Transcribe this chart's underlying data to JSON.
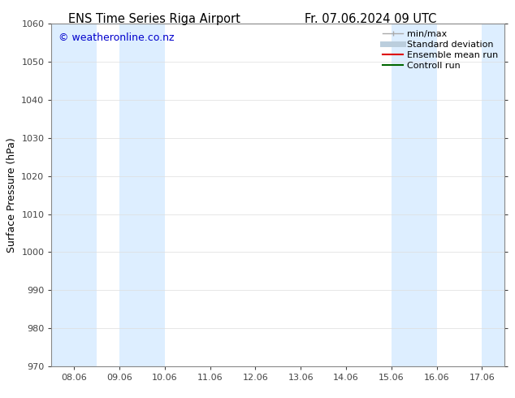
{
  "title_left": "ENS Time Series Riga Airport",
  "title_right": "Fr. 07.06.2024 09 UTC",
  "ylabel": "Surface Pressure (hPa)",
  "ylim": [
    970,
    1060
  ],
  "yticks": [
    970,
    980,
    990,
    1000,
    1010,
    1020,
    1030,
    1040,
    1050,
    1060
  ],
  "x_labels": [
    "08.06",
    "09.06",
    "10.06",
    "11.06",
    "12.06",
    "13.06",
    "14.06",
    "15.06",
    "16.06",
    "17.06"
  ],
  "x_values": [
    0,
    1,
    2,
    3,
    4,
    5,
    6,
    7,
    8,
    9
  ],
  "xlim": [
    -0.5,
    9.5
  ],
  "shaded_bands": [
    {
      "x_start": -0.5,
      "x_end": 0.5,
      "color": "#ddeeff"
    },
    {
      "x_start": 1.0,
      "x_end": 2.0,
      "color": "#ddeeff"
    },
    {
      "x_start": 7.0,
      "x_end": 8.0,
      "color": "#ddeeff"
    },
    {
      "x_start": 9.0,
      "x_end": 9.5,
      "color": "#ddeeff"
    }
  ],
  "watermark": "© weatheronline.co.nz",
  "watermark_color": "#0000cc",
  "bg_color": "#ffffff",
  "plot_bg_color": "#ffffff",
  "spine_color": "#888888",
  "tick_color": "#444444",
  "legend_items": [
    {
      "label": "min/max",
      "color": "#aaaaaa",
      "lw": 1.0,
      "type": "minmax"
    },
    {
      "label": "Standard deviation",
      "color": "#bbcedd",
      "lw": 5,
      "type": "line"
    },
    {
      "label": "Ensemble mean run",
      "color": "#dd0000",
      "lw": 1.5,
      "type": "line"
    },
    {
      "label": "Controll run",
      "color": "#006600",
      "lw": 1.5,
      "type": "line"
    }
  ],
  "font_size_title": 10.5,
  "font_size_axis": 9,
  "font_size_ticks": 8,
  "font_size_legend": 8,
  "font_size_watermark": 9
}
